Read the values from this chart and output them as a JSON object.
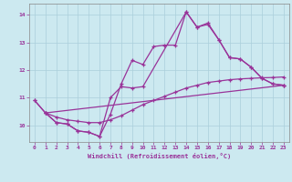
{
  "background_color": "#cce9f0",
  "grid_color": "#aacfdb",
  "line_color": "#993399",
  "xlabel": "Windchill (Refroidissement éolien,°C)",
  "xlim": [
    -0.5,
    23.5
  ],
  "ylim": [
    9.4,
    14.4
  ],
  "yticks": [
    10,
    11,
    12,
    13,
    14
  ],
  "xticks": [
    0,
    1,
    2,
    3,
    4,
    5,
    6,
    7,
    8,
    9,
    10,
    11,
    12,
    13,
    14,
    15,
    16,
    17,
    18,
    19,
    20,
    21,
    22,
    23
  ],
  "series": [
    {
      "x": [
        0,
        1,
        2,
        3,
        4,
        5,
        6,
        7,
        8,
        9,
        10,
        11,
        12,
        13,
        14,
        15,
        16,
        17,
        18,
        19,
        20,
        21,
        22,
        23
      ],
      "y": [
        10.9,
        10.45,
        10.1,
        10.05,
        9.8,
        9.75,
        9.6,
        10.4,
        11.5,
        12.35,
        12.2,
        12.85,
        12.9,
        12.9,
        14.1,
        13.55,
        13.65,
        13.1,
        12.45,
        12.4,
        12.1,
        11.7,
        11.5,
        11.45
      ]
    },
    {
      "x": [
        0,
        1,
        2,
        3,
        4,
        5,
        6,
        7,
        8,
        9,
        10,
        14,
        15,
        16,
        17,
        18,
        19,
        20,
        21,
        22,
        23
      ],
      "y": [
        10.9,
        10.45,
        10.1,
        10.05,
        9.8,
        9.75,
        9.6,
        11.0,
        11.4,
        11.35,
        11.4,
        14.1,
        13.55,
        13.7,
        13.1,
        12.45,
        12.4,
        12.1,
        11.7,
        11.5,
        11.45
      ]
    },
    {
      "x": [
        1,
        2,
        3,
        4,
        5,
        6,
        7,
        8,
        9,
        10,
        11,
        12,
        13,
        14,
        15,
        16,
        17,
        18,
        19,
        20,
        21,
        22,
        23
      ],
      "y": [
        10.45,
        10.3,
        10.2,
        10.15,
        10.1,
        10.1,
        10.2,
        10.35,
        10.55,
        10.75,
        10.9,
        11.05,
        11.2,
        11.35,
        11.45,
        11.55,
        11.6,
        11.65,
        11.68,
        11.7,
        11.72,
        11.73,
        11.75
      ]
    },
    {
      "x": [
        1,
        23
      ],
      "y": [
        10.45,
        11.45
      ]
    }
  ]
}
